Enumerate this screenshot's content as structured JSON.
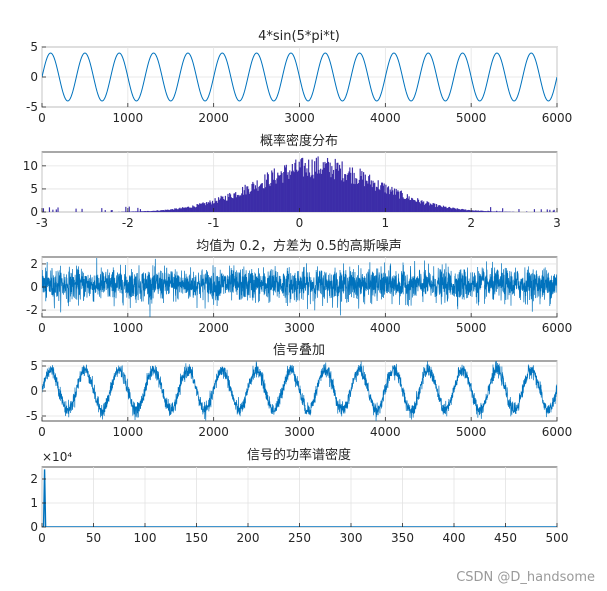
{
  "chart_data": [
    {
      "type": "line",
      "title": "4*sin(5*pi*t)",
      "xlim": [
        0,
        6000
      ],
      "ylim": [
        -5,
        5
      ],
      "xticks": [
        0,
        1000,
        2000,
        3000,
        4000,
        5000,
        6000
      ],
      "yticks": [
        -5,
        0,
        5
      ],
      "grid": true,
      "color": "#0072BD",
      "series": [
        {
          "kind": "sine",
          "amplitude": 4,
          "frequency_hz": 2.5,
          "sample_rate_hz": 1000,
          "n_samples": 6000
        }
      ]
    },
    {
      "type": "bar",
      "title": "概率密度分布",
      "xlim": [
        -3,
        3
      ],
      "ylim": [
        0,
        13
      ],
      "xticks": [
        -3,
        -2,
        -1,
        0,
        1,
        2,
        3
      ],
      "yticks": [
        0,
        5,
        10
      ],
      "grid": true,
      "color": "#3C2DA8",
      "series": [
        {
          "kind": "histogram",
          "mean": 0.2,
          "std": 0.707,
          "peak_count": 12
        }
      ]
    },
    {
      "type": "line",
      "title": "均值为 0.2，方差为 0.5的高斯噪声",
      "xlim": [
        0,
        6000
      ],
      "ylim": [
        -2.6,
        2.6
      ],
      "xticks": [
        0,
        1000,
        2000,
        3000,
        4000,
        5000,
        6000
      ],
      "yticks": [
        -2,
        0,
        2
      ],
      "grid": true,
      "color": "#0072BD",
      "series": [
        {
          "kind": "noise",
          "mean": 0.2,
          "variance": 0.5,
          "n_samples": 6000
        }
      ]
    },
    {
      "type": "line",
      "title": "信号叠加",
      "xlim": [
        0,
        6000
      ],
      "ylim": [
        -6,
        6
      ],
      "xticks": [
        0,
        1000,
        2000,
        3000,
        4000,
        5000,
        6000
      ],
      "yticks": [
        -5,
        0,
        5
      ],
      "grid": true,
      "color": "#0072BD",
      "series": [
        {
          "kind": "sine_plus_noise",
          "amplitude": 4,
          "frequency_hz": 2.5,
          "sample_rate_hz": 1000,
          "noise_mean": 0.2,
          "noise_variance": 0.5
        }
      ]
    },
    {
      "type": "line",
      "title": "信号的功率谱密度",
      "xlim": [
        0,
        500
      ],
      "ylim": [
        0,
        25000
      ],
      "xticks": [
        0,
        50,
        100,
        150,
        200,
        250,
        300,
        350,
        400,
        450,
        500
      ],
      "yticks": [
        0,
        1,
        2
      ],
      "y_exponent": "×10⁴",
      "grid": true,
      "color": "#0072BD",
      "series": [
        {
          "kind": "spectrum",
          "peak_x": 2.5,
          "peak_y": 24000,
          "floor_y": 20
        }
      ]
    }
  ],
  "watermark": "CSDN @D_handsome"
}
